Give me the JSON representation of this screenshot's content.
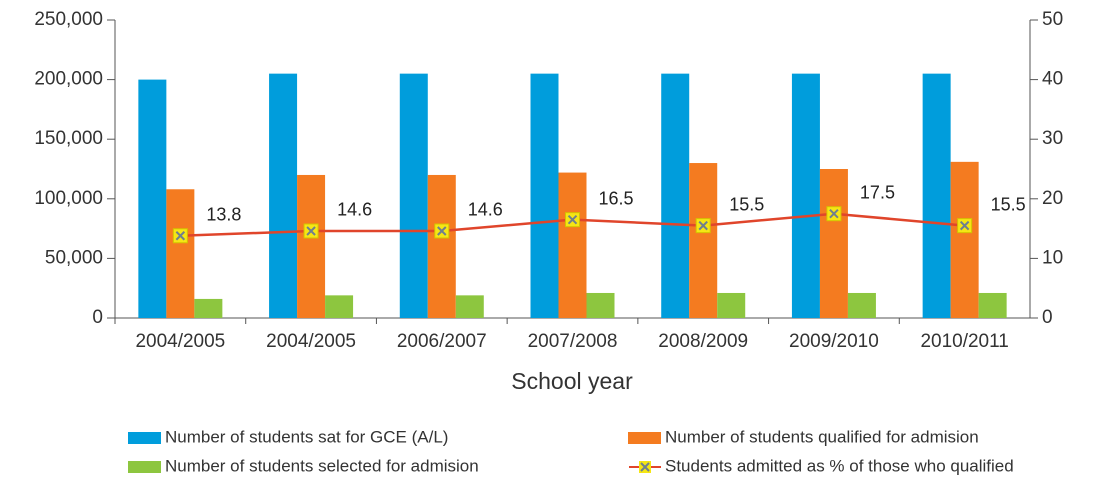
{
  "chart_data": {
    "type": "bar",
    "x_label": "School year",
    "categories": [
      "2004/2005",
      "2004/2005",
      "2006/2007",
      "2007/2008",
      "2008/2009",
      "2009/2010",
      "2010/2011"
    ],
    "series": [
      {
        "name": "Number of students sat for GCE (A/L)",
        "color": "#009ddc",
        "type": "bar",
        "values": [
          200000,
          205000,
          205000,
          205000,
          205000,
          205000,
          205000
        ]
      },
      {
        "name": "Number of students qualified for admision",
        "color": "#f47b20",
        "type": "bar",
        "values": [
          108000,
          120000,
          120000,
          122000,
          130000,
          125000,
          131000
        ]
      },
      {
        "name": "Number of students selected for admision",
        "color": "#8dc63f",
        "type": "bar",
        "values": [
          16000,
          19000,
          19000,
          21000,
          21000,
          21000,
          21000
        ]
      },
      {
        "name": "Students admitted as % of those who qualified",
        "color": "#e0452b",
        "marker_color": "#f5e614",
        "type": "line",
        "axis": "y2",
        "values": [
          13.8,
          14.6,
          14.6,
          16.5,
          15.5,
          17.5,
          15.5
        ]
      }
    ],
    "ylim": [
      0,
      250000
    ],
    "yticks": [
      0,
      {
        "value": 50000,
        "label": "50,000"
      },
      {
        "value": 100000,
        "label": "100,000"
      },
      {
        "value": 150000,
        "label": "150,000"
      },
      {
        "value": 200000,
        "label": "200,000"
      },
      {
        "value": 250000,
        "label": "250,000"
      }
    ],
    "y2lim": [
      0,
      50
    ],
    "y2ticks": [
      0,
      10,
      20,
      30,
      40,
      50
    ],
    "grid": false,
    "legend": "bottom"
  }
}
